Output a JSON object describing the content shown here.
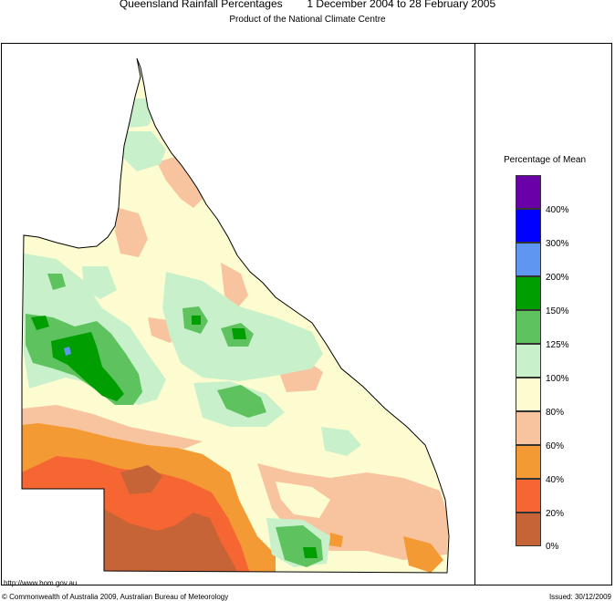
{
  "title": "Queensland Rainfall Percentages        1 December 2004 to 28 February 2005",
  "subtitle": "Product of the National Climate Centre",
  "legend": {
    "title": "Percentage of Mean",
    "classes": [
      {
        "label": "400%",
        "color": "#6a00a8"
      },
      {
        "label": "300%",
        "color": "#0000ff"
      },
      {
        "label": "200%",
        "color": "#5f96f2"
      },
      {
        "label": "150%",
        "color": "#009e00"
      },
      {
        "label": "125%",
        "color": "#5ec35e"
      },
      {
        "label": "100%",
        "color": "#c8f1cb"
      },
      {
        "label": "80%",
        "color": "#fdfcd0"
      },
      {
        "label": "60%",
        "color": "#f7c49f"
      },
      {
        "label": "40%",
        "color": "#f49a35"
      },
      {
        "label": "20%",
        "color": "#f56632"
      },
      {
        "label": "0%",
        "color": "#c66337"
      }
    ]
  },
  "footer": {
    "url": "http://www.bom.gov.au",
    "copyright": "© Commonwealth of Australia 2009, Australian Bureau of Meteorology",
    "issued": "Issued: 30/12/2009"
  }
}
